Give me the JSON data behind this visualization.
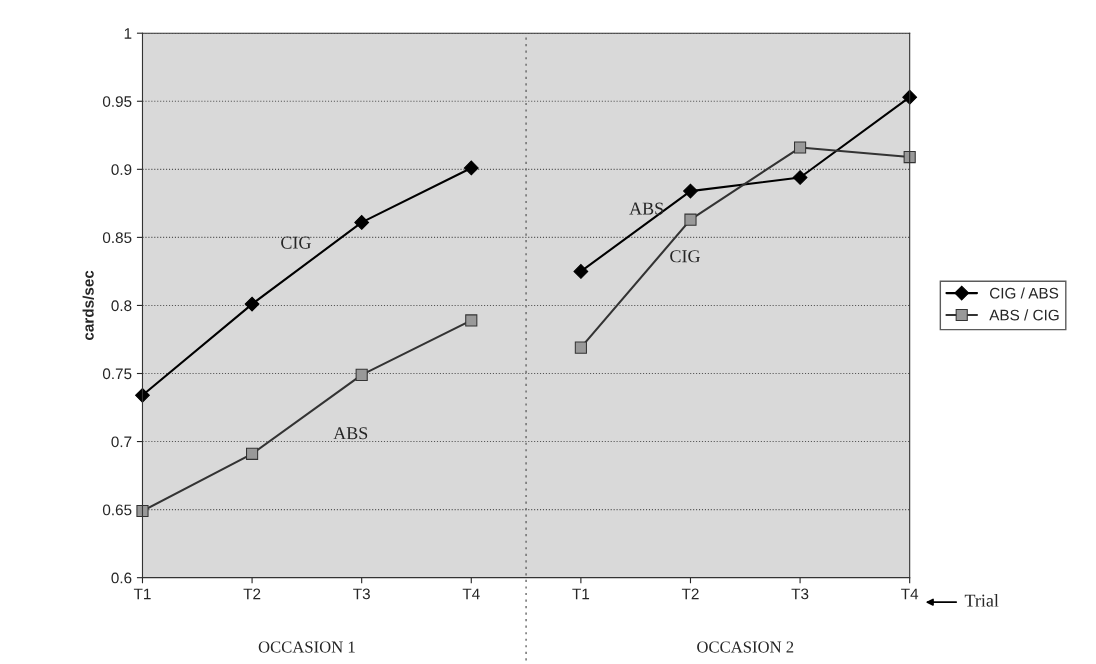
{
  "chart_data": {
    "type": "line",
    "ylabel": "cards/sec",
    "categories": [
      "T1",
      "T2",
      "T3",
      "T4",
      "T1",
      "T2",
      "T3",
      "T4"
    ],
    "ylim": [
      0.6,
      1
    ],
    "yticks": [
      0.6,
      0.65,
      0.7,
      0.75,
      0.8,
      0.85,
      0.9,
      0.95,
      1
    ],
    "series": [
      {
        "name": "CIG / ABS",
        "color": "#000000",
        "marker": "diamond",
        "values": [
          0.734,
          0.801,
          0.861,
          0.901,
          null,
          null,
          null,
          null
        ]
      },
      {
        "name": "ABS / CIG",
        "color": "#333333",
        "marker": "square",
        "values": [
          0.649,
          0.691,
          0.749,
          0.789,
          null,
          null,
          null,
          null
        ]
      },
      {
        "color": "#000000",
        "marker": "diamond",
        "values": [
          null,
          null,
          null,
          null,
          0.825,
          0.884,
          0.894,
          0.953
        ]
      },
      {
        "color": "#333333",
        "marker": "square",
        "values": [
          null,
          null,
          null,
          null,
          0.769,
          0.863,
          0.916,
          0.909
        ]
      }
    ],
    "annotations": [
      "CIG",
      "ABS",
      "ABS",
      "CIG",
      "OCCASION 1",
      "OCCASION 2",
      "Trial"
    ],
    "grid": "y",
    "legend": "right",
    "line_style": "solid"
  }
}
